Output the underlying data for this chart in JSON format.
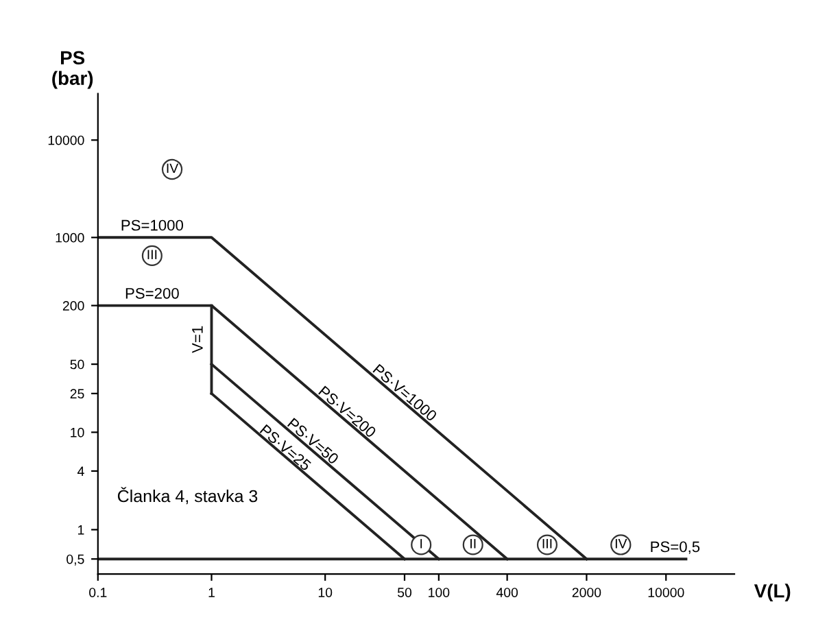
{
  "chart_data": {
    "type": "line",
    "xlabel": "V(L)",
    "ylabel": "PS\n(bar)",
    "log": "xy",
    "xlim": [
      0.1,
      40000
    ],
    "ylim": [
      0.35,
      30000
    ],
    "xticks": [
      0.1,
      1,
      10,
      50,
      100,
      400,
      2000,
      10000
    ],
    "yticks": [
      {
        "value": 0.5,
        "label": "0,5"
      },
      1,
      4,
      10,
      25,
      50,
      200,
      1000,
      10000
    ],
    "grid": false,
    "legend": false,
    "marker": "none",
    "line_style": "solid",
    "series": [
      {
        "color": "#222222",
        "x": [
          0.1,
          1,
          2000
        ],
        "values": [
          1000,
          1000,
          0.5
        ]
      },
      {
        "color": "#222222",
        "x": [
          0.1,
          1,
          400
        ],
        "values": [
          200,
          200,
          0.5
        ]
      },
      {
        "color": "#222222",
        "x": [
          1,
          1
        ],
        "values": [
          200,
          25
        ]
      },
      {
        "color": "#222222",
        "x": [
          1,
          100
        ],
        "values": [
          50,
          0.5
        ]
      },
      {
        "color": "#222222",
        "x": [
          1,
          50
        ],
        "values": [
          25,
          0.5
        ]
      },
      {
        "color": "#222222",
        "x": [
          0.1,
          15000
        ],
        "values": [
          0.5,
          0.5
        ]
      }
    ],
    "annotations": [
      {
        "text": "PS=1000",
        "x": 0.3,
        "y": 1000
      },
      {
        "text": "PS=200",
        "x": 0.3,
        "y": 200
      },
      {
        "text": "V=1",
        "x": 1,
        "y": 90
      },
      {
        "text": "PS·V=1000",
        "x": 45,
        "y": 22
      },
      {
        "text": "PS·V=200",
        "x": 14,
        "y": 14
      },
      {
        "text": "PS·V=50",
        "x": 7,
        "y": 7
      },
      {
        "text": "PS·V=25",
        "x": 4,
        "y": 6
      },
      {
        "text": "PS=0,5",
        "x": 12000,
        "y": 0.5
      },
      {
        "text": "IV",
        "x": 0.45,
        "y": 5000
      },
      {
        "text": "III",
        "x": 0.3,
        "y": 650
      },
      {
        "text": "I",
        "x": 70,
        "y": 0.7
      },
      {
        "text": "II",
        "x": 200,
        "y": 0.7
      },
      {
        "text": "III",
        "x": 900,
        "y": 0.7
      },
      {
        "text": "IV",
        "x": 4000,
        "y": 0.7
      },
      "Članka 4, stavka 3"
    ]
  }
}
